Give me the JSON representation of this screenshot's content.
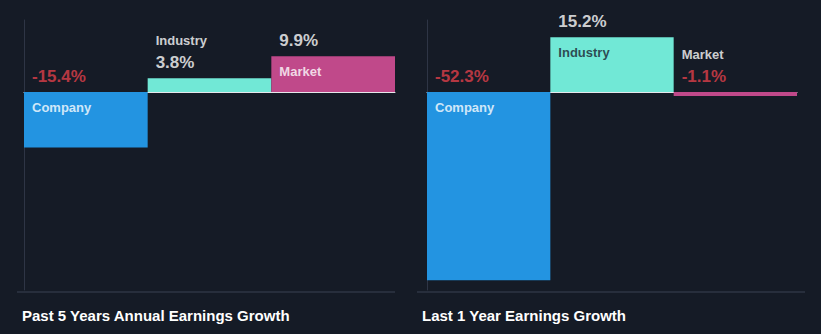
{
  "chart_data": [
    {
      "type": "bar",
      "title": "Past 5 Years Annual Earnings Growth",
      "categories": [
        "Company",
        "Industry",
        "Market"
      ],
      "values": [
        -15.4,
        3.8,
        9.9
      ],
      "value_labels": [
        "-15.4%",
        "3.8%",
        "9.9%"
      ],
      "colors": [
        "#2394e1",
        "#71e8d6",
        "#c0498a"
      ],
      "ylim": [
        -55,
        20
      ],
      "tick_labels": false,
      "grid": false,
      "data_labels": true
    },
    {
      "type": "bar",
      "title": "Last 1 Year Earnings Growth",
      "categories": [
        "Company",
        "Industry",
        "Market"
      ],
      "values": [
        -52.3,
        15.2,
        -1.1
      ],
      "value_labels": [
        "-52.3%",
        "15.2%",
        "-1.1%"
      ],
      "colors": [
        "#2394e1",
        "#71e8d6",
        "#c0498a"
      ],
      "ylim": [
        -55,
        20
      ],
      "tick_labels": false,
      "grid": false,
      "data_labels": true
    }
  ]
}
